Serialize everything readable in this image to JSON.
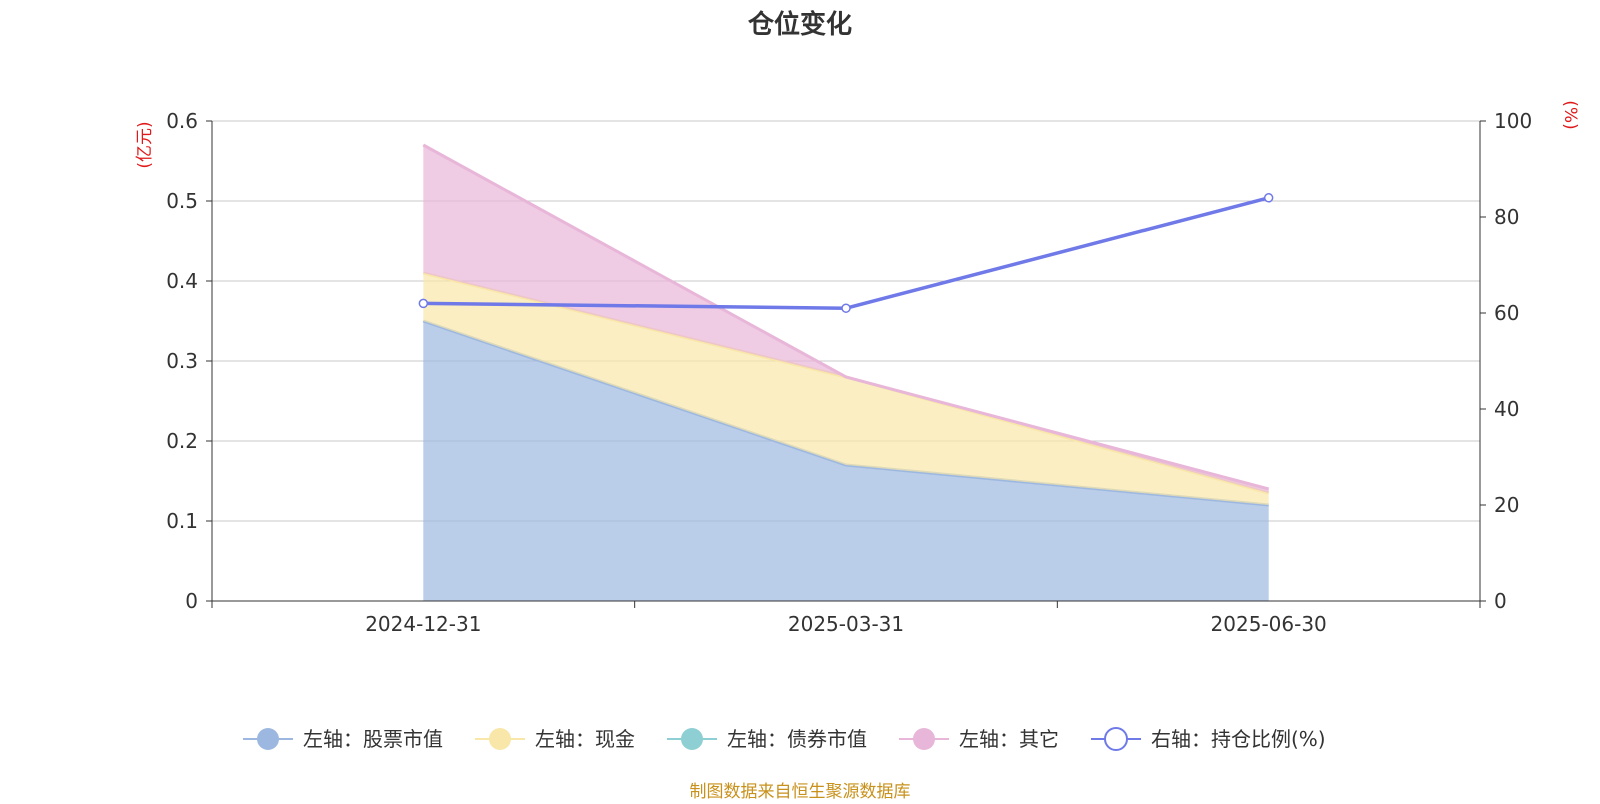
{
  "chart_data": {
    "type": "area",
    "title": "仓位变化",
    "categories": [
      "2024-12-31",
      "2025-03-31",
      "2025-06-30"
    ],
    "left_axis": {
      "unit_label": "(亿元)",
      "ylim": [
        0,
        0.6
      ],
      "ticks": [
        "0",
        "0.1",
        "0.2",
        "0.3",
        "0.4",
        "0.5",
        "0.6"
      ],
      "tick_values": [
        0,
        0.1,
        0.2,
        0.3,
        0.4,
        0.5,
        0.6
      ]
    },
    "right_axis": {
      "unit_label": "(%)",
      "ylim": [
        0,
        100
      ],
      "ticks": [
        "0",
        "20",
        "40",
        "60",
        "80",
        "100"
      ],
      "tick_values": [
        0,
        20,
        40,
        60,
        80,
        100
      ]
    },
    "stacked": true,
    "grid": true,
    "legend_position": "bottom",
    "series": [
      {
        "name": "左轴：股票市值",
        "axis": "left",
        "kind": "area",
        "color": "#9db8e0",
        "values": [
          0.35,
          0.17,
          0.12
        ]
      },
      {
        "name": "左轴：现金",
        "axis": "left",
        "kind": "area",
        "color": "#f8e7a8",
        "values": [
          0.06,
          0.11,
          0.015
        ]
      },
      {
        "name": "左轴：债券市值",
        "axis": "left",
        "kind": "area",
        "color": "#8ecfd3",
        "values": [
          0,
          0,
          0
        ]
      },
      {
        "name": "左轴：其它",
        "axis": "left",
        "kind": "area",
        "color": "#e8b6d8",
        "values": [
          0.16,
          0,
          0.005
        ]
      },
      {
        "name": "右轴：持仓比例(%)",
        "axis": "right",
        "kind": "line",
        "color": "#6f79e8",
        "values": [
          62,
          61,
          84
        ]
      }
    ]
  },
  "source_text": "制图数据来自恒生聚源数据库",
  "colors": {
    "unit_label": "#e0191a",
    "source_text": "#c8911c",
    "grid": "#c8c8c8",
    "axis": "#333333"
  }
}
